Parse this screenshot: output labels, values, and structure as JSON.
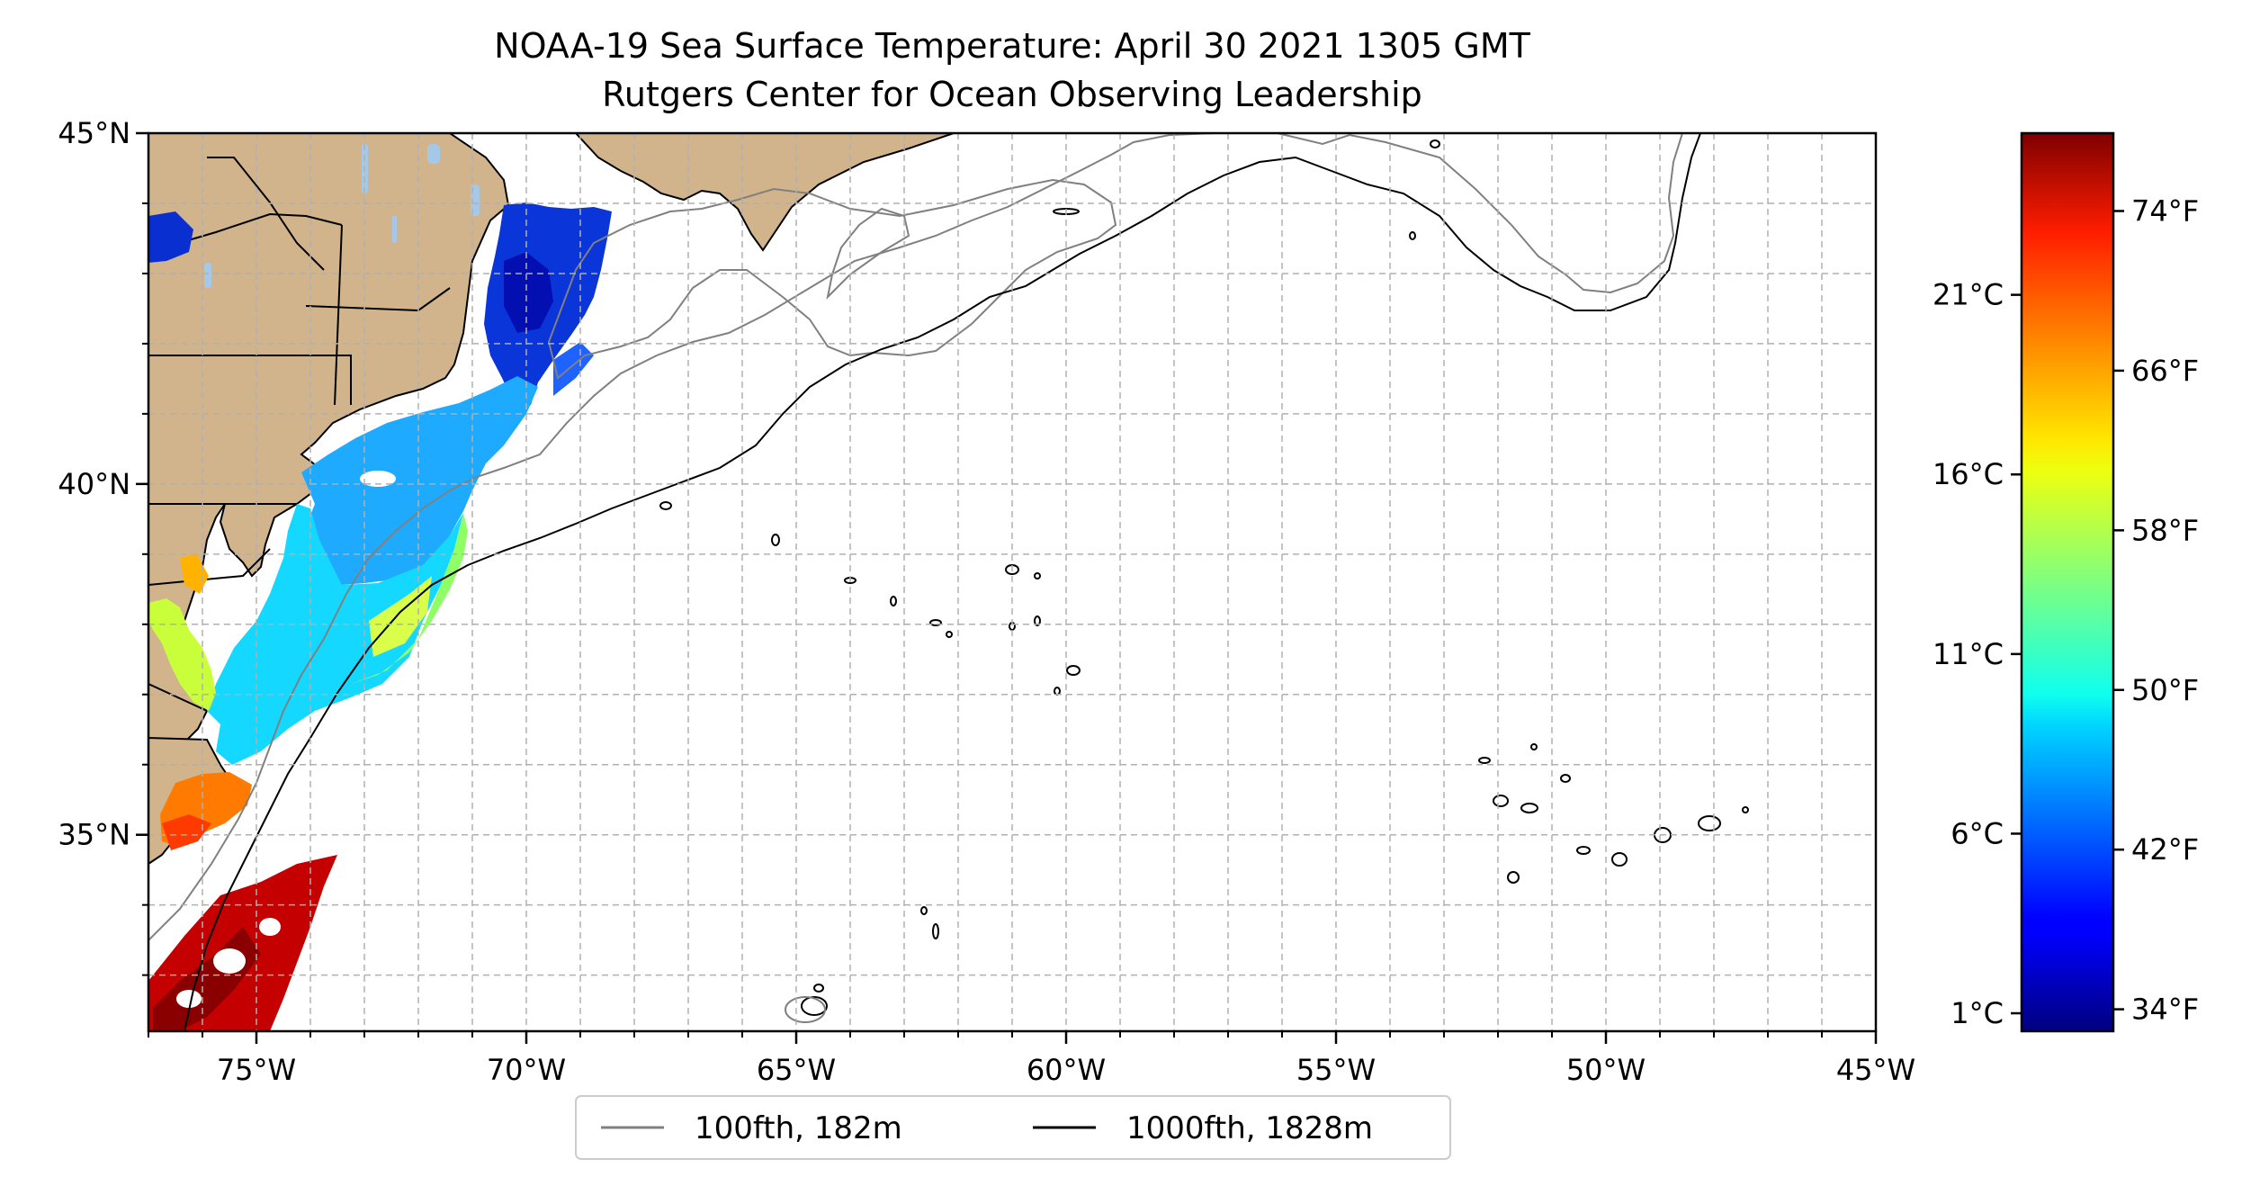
{
  "title": {
    "line1": "NOAA-19 Sea Surface Temperature: April 30 2021 1305 GMT",
    "line2": "Rutgers Center for Ocean Observing Leadership"
  },
  "map": {
    "lon_range": [
      -77,
      -45
    ],
    "lat_range": [
      32.2,
      45
    ],
    "lon_ticks": [
      {
        "value": -75,
        "label": "75°W"
      },
      {
        "value": -70,
        "label": "70°W"
      },
      {
        "value": -65,
        "label": "65°W"
      },
      {
        "value": -60,
        "label": "60°W"
      },
      {
        "value": -55,
        "label": "55°W"
      },
      {
        "value": -50,
        "label": "50°W"
      },
      {
        "value": -45,
        "label": "45°W"
      }
    ],
    "lat_ticks": [
      {
        "value": 45,
        "label": "45°N"
      },
      {
        "value": 40,
        "label": "40°N"
      },
      {
        "value": 35,
        "label": "35°N"
      }
    ],
    "colors": {
      "land": "#d2b48c",
      "lakes": "#a6c8e8",
      "contour_100fth": "#808080",
      "contour_1000fth": "#000000"
    }
  },
  "legend": {
    "placement": "bottom-center",
    "items": [
      {
        "label": "100fth, 182m",
        "color": "#808080"
      },
      {
        "label": "1000fth, 1828m",
        "color": "#000000"
      }
    ]
  },
  "colorbar": {
    "colormap": "jet",
    "range_celsius": [
      0.5,
      25.5
    ],
    "celsius_ticks": [
      {
        "value": 1,
        "label": "1°C"
      },
      {
        "value": 6,
        "label": "6°C"
      },
      {
        "value": 11,
        "label": "11°C"
      },
      {
        "value": 16,
        "label": "16°C"
      },
      {
        "value": 21,
        "label": "21°C"
      }
    ],
    "fahrenheit_ticks": [
      {
        "value": 34,
        "label": "34°F"
      },
      {
        "value": 42,
        "label": "42°F"
      },
      {
        "value": 50,
        "label": "50°F"
      },
      {
        "value": 58,
        "label": "58°F"
      },
      {
        "value": 66,
        "label": "66°F"
      },
      {
        "value": 74,
        "label": "74°F"
      }
    ]
  }
}
